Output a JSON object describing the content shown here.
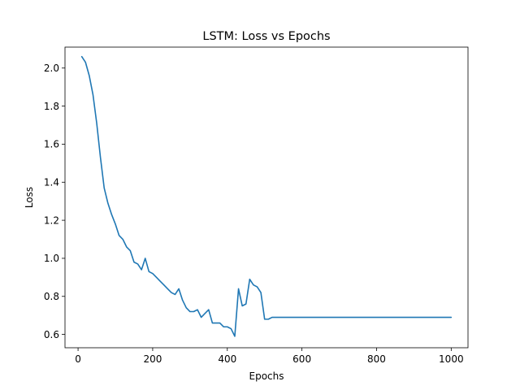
{
  "chart_data": {
    "type": "line",
    "title": "LSTM: Loss vs Epochs",
    "xlabel": "Epochs",
    "ylabel": "Loss",
    "xlim": [
      -35,
      1045
    ],
    "ylim": [
      0.53,
      2.11
    ],
    "xticks": [
      0,
      200,
      400,
      600,
      800,
      1000
    ],
    "yticks": [
      0.6,
      0.8,
      1.0,
      1.2,
      1.4,
      1.6,
      1.8,
      2.0
    ],
    "xtick_labels": [
      "0",
      "200",
      "400",
      "600",
      "800",
      "1000"
    ],
    "ytick_labels": [
      "0.6",
      "0.8",
      "1.0",
      "1.2",
      "1.4",
      "1.6",
      "1.8",
      "2.0"
    ],
    "grid": false,
    "line_color": "#1f77b4",
    "series": [
      {
        "x": [
          10,
          20,
          30,
          40,
          50,
          60,
          70,
          80,
          90,
          100,
          110,
          120,
          130,
          140,
          150,
          160,
          170,
          180,
          190,
          200,
          210,
          220,
          230,
          240,
          250,
          260,
          270,
          280,
          290,
          300,
          310,
          320,
          330,
          340,
          350,
          360,
          370,
          380,
          390,
          400,
          410,
          420,
          430,
          440,
          450,
          460,
          470,
          480,
          490,
          500,
          510,
          520,
          530,
          600,
          700,
          800,
          900,
          1000
        ],
        "y": [
          2.06,
          2.03,
          1.96,
          1.86,
          1.71,
          1.53,
          1.37,
          1.29,
          1.23,
          1.18,
          1.12,
          1.1,
          1.06,
          1.04,
          0.98,
          0.97,
          0.94,
          1.0,
          0.93,
          0.92,
          0.9,
          0.88,
          0.86,
          0.84,
          0.82,
          0.81,
          0.84,
          0.78,
          0.74,
          0.72,
          0.72,
          0.73,
          0.69,
          0.71,
          0.73,
          0.66,
          0.66,
          0.66,
          0.64,
          0.64,
          0.63,
          0.59,
          0.84,
          0.75,
          0.76,
          0.89,
          0.86,
          0.85,
          0.82,
          0.68,
          0.68,
          0.69,
          0.69,
          0.69,
          0.69,
          0.69,
          0.69,
          0.69
        ]
      }
    ]
  }
}
